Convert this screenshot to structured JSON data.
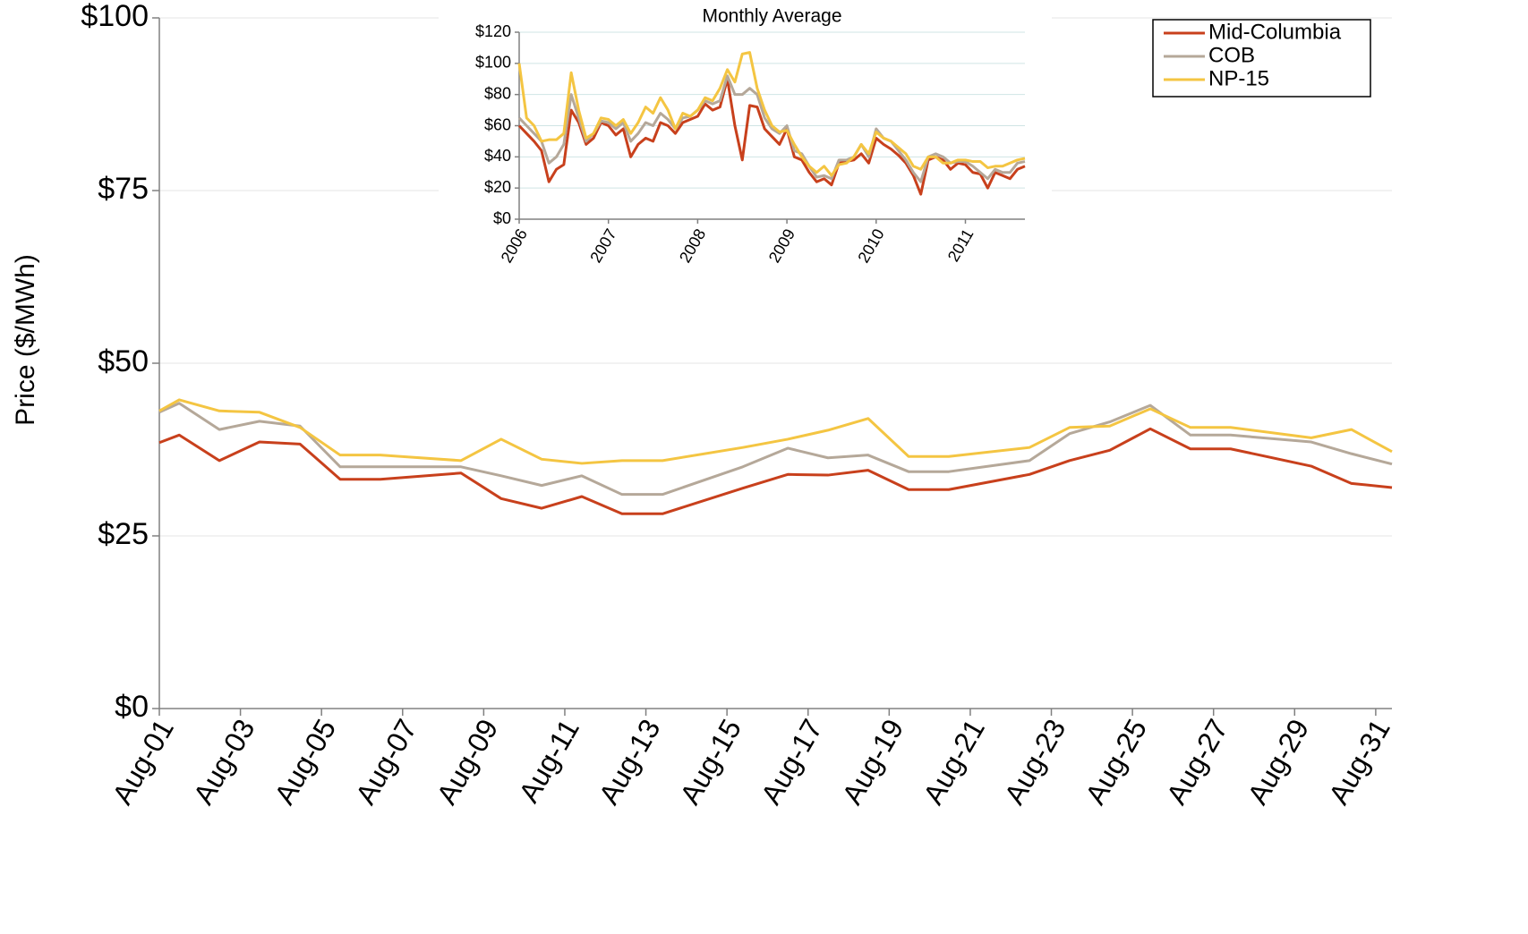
{
  "chart_data": [
    {
      "type": "line",
      "y_label": "Price ($/MWh)",
      "x": [
        1,
        1.49,
        2.48,
        3.47,
        4.47,
        5.46,
        6.45,
        8.44,
        9.43,
        10.43,
        11.42,
        12.41,
        13.41,
        15.39,
        16.5,
        17.49,
        18.48,
        19.48,
        20.47,
        22.46,
        23.45,
        24.44,
        25.44,
        26.43,
        27.42,
        29.41,
        30.4,
        31.4
      ],
      "xlim": [
        1,
        31.4
      ],
      "xticks": [
        {
          "value": 1,
          "label": "Aug-01"
        },
        {
          "value": 3,
          "label": "Aug-03"
        },
        {
          "value": 5,
          "label": "Aug-05"
        },
        {
          "value": 7,
          "label": "Aug-07"
        },
        {
          "value": 9,
          "label": "Aug-09"
        },
        {
          "value": 11,
          "label": "Aug-11"
        },
        {
          "value": 13,
          "label": "Aug-13"
        },
        {
          "value": 15,
          "label": "Aug-15"
        },
        {
          "value": 17,
          "label": "Aug-17"
        },
        {
          "value": 19,
          "label": "Aug-19"
        },
        {
          "value": 21,
          "label": "Aug-21"
        },
        {
          "value": 23,
          "label": "Aug-23"
        },
        {
          "value": 25,
          "label": "Aug-25"
        },
        {
          "value": 27,
          "label": "Aug-27"
        },
        {
          "value": 29,
          "label": "Aug-29"
        },
        {
          "value": 31,
          "label": "Aug-31"
        }
      ],
      "ylim": [
        0,
        100
      ],
      "yticks": [
        {
          "value": 0,
          "label": "$0"
        },
        {
          "value": 25,
          "label": "$25"
        },
        {
          "value": 50,
          "label": "$50"
        },
        {
          "value": 75,
          "label": "$75"
        },
        {
          "value": 100,
          "label": "$100"
        }
      ],
      "grid": true,
      "legend": "upper right",
      "series": [
        {
          "name": "Mid-Columbia",
          "color": "#c8401c",
          "values": [
            38.5,
            39.6,
            35.9,
            38.6,
            38.3,
            33.2,
            33.2,
            34.1,
            30.4,
            29.0,
            30.7,
            28.2,
            28.2,
            31.9,
            33.9,
            33.8,
            34.5,
            31.7,
            31.7,
            33.9,
            35.9,
            37.4,
            40.5,
            37.6,
            37.6,
            35.1,
            32.6,
            32.0
          ]
        },
        {
          "name": "COB",
          "color": "#b5a899",
          "values": [
            42.9,
            44.2,
            40.4,
            41.6,
            40.9,
            35.0,
            35.0,
            35.0,
            33.7,
            32.3,
            33.7,
            31.0,
            31.0,
            35.0,
            37.7,
            36.3,
            36.7,
            34.3,
            34.3,
            35.9,
            39.8,
            41.5,
            43.9,
            39.6,
            39.6,
            38.6,
            36.9,
            35.4
          ]
        },
        {
          "name": "NP-15",
          "color": "#f4c542",
          "values": [
            43.1,
            44.7,
            43.1,
            42.9,
            40.7,
            36.7,
            36.7,
            35.9,
            39.0,
            36.1,
            35.5,
            35.9,
            35.9,
            37.8,
            39.0,
            40.3,
            42.0,
            36.5,
            36.5,
            37.8,
            40.7,
            40.9,
            43.4,
            40.7,
            40.7,
            39.2,
            40.4,
            37.2
          ]
        }
      ]
    },
    {
      "type": "line",
      "title": "Monthly Average",
      "x": [
        2006,
        2006.083,
        2006.167,
        2006.25,
        2006.333,
        2006.417,
        2006.5,
        2006.583,
        2006.667,
        2006.75,
        2006.833,
        2006.917,
        2007,
        2007.083,
        2007.167,
        2007.25,
        2007.333,
        2007.417,
        2007.5,
        2007.583,
        2007.667,
        2007.75,
        2007.833,
        2007.917,
        2008,
        2008.083,
        2008.167,
        2008.25,
        2008.333,
        2008.417,
        2008.5,
        2008.583,
        2008.667,
        2008.75,
        2008.833,
        2008.917,
        2009,
        2009.083,
        2009.167,
        2009.25,
        2009.333,
        2009.417,
        2009.5,
        2009.583,
        2009.667,
        2009.75,
        2009.833,
        2009.917,
        2010,
        2010.083,
        2010.167,
        2010.25,
        2010.333,
        2010.417,
        2010.5,
        2010.583,
        2010.667,
        2010.75,
        2010.833,
        2010.917,
        2011,
        2011.083,
        2011.167,
        2011.25,
        2011.333,
        2011.417,
        2011.5,
        2011.583,
        2011.667
      ],
      "xlim": [
        2006,
        2011.667
      ],
      "xticks": [
        2006,
        2007,
        2008,
        2009,
        2010,
        2011
      ],
      "ylim": [
        0,
        120
      ],
      "yticks": [
        {
          "value": 0,
          "label": "$0"
        },
        {
          "value": 20,
          "label": "$20"
        },
        {
          "value": 40,
          "label": "$40"
        },
        {
          "value": 60,
          "label": "$60"
        },
        {
          "value": 80,
          "label": "$80"
        },
        {
          "value": 100,
          "label": "$100"
        },
        {
          "value": 120,
          "label": "$120"
        }
      ],
      "grid": true,
      "series": [
        {
          "color": "#c8401c",
          "values": [
            60,
            55,
            50,
            44,
            24,
            32,
            35,
            70,
            62,
            48,
            52,
            62,
            60,
            54,
            58,
            40,
            48,
            52,
            50,
            62,
            60,
            55,
            62,
            64,
            66,
            74,
            70,
            72,
            90,
            60,
            38,
            73,
            72,
            58,
            53,
            48,
            58,
            40,
            38,
            30,
            24,
            26,
            22,
            36,
            37,
            38,
            42,
            36,
            52,
            48,
            45,
            41,
            36,
            28,
            16,
            38,
            40,
            38,
            32,
            36,
            35,
            30,
            29,
            20,
            30,
            28,
            26,
            32,
            34
          ]
        },
        {
          "color": "#b5a899",
          "values": [
            65,
            60,
            55,
            50,
            36,
            40,
            48,
            80,
            65,
            50,
            55,
            63,
            62,
            58,
            62,
            50,
            55,
            62,
            60,
            68,
            64,
            58,
            65,
            66,
            70,
            76,
            74,
            76,
            92,
            80,
            80,
            84,
            80,
            65,
            58,
            55,
            60,
            44,
            42,
            34,
            27,
            28,
            26,
            38,
            38,
            40,
            48,
            40,
            58,
            52,
            50,
            44,
            38,
            30,
            24,
            40,
            42,
            40,
            36,
            37,
            37,
            34,
            30,
            26,
            32,
            30,
            30,
            36,
            37
          ]
        },
        {
          "color": "#f4c542",
          "values": [
            100,
            65,
            60,
            50,
            51,
            51,
            55,
            94,
            70,
            52,
            55,
            65,
            64,
            60,
            64,
            55,
            62,
            72,
            68,
            78,
            70,
            58,
            68,
            66,
            70,
            78,
            76,
            84,
            96,
            88,
            106,
            107,
            84,
            70,
            60,
            56,
            57,
            48,
            40,
            34,
            30,
            34,
            28,
            35,
            36,
            40,
            48,
            42,
            56,
            52,
            50,
            46,
            42,
            34,
            32,
            40,
            40,
            36,
            36,
            38,
            38,
            37,
            37,
            33,
            34,
            34,
            36,
            38,
            39
          ]
        }
      ]
    }
  ]
}
